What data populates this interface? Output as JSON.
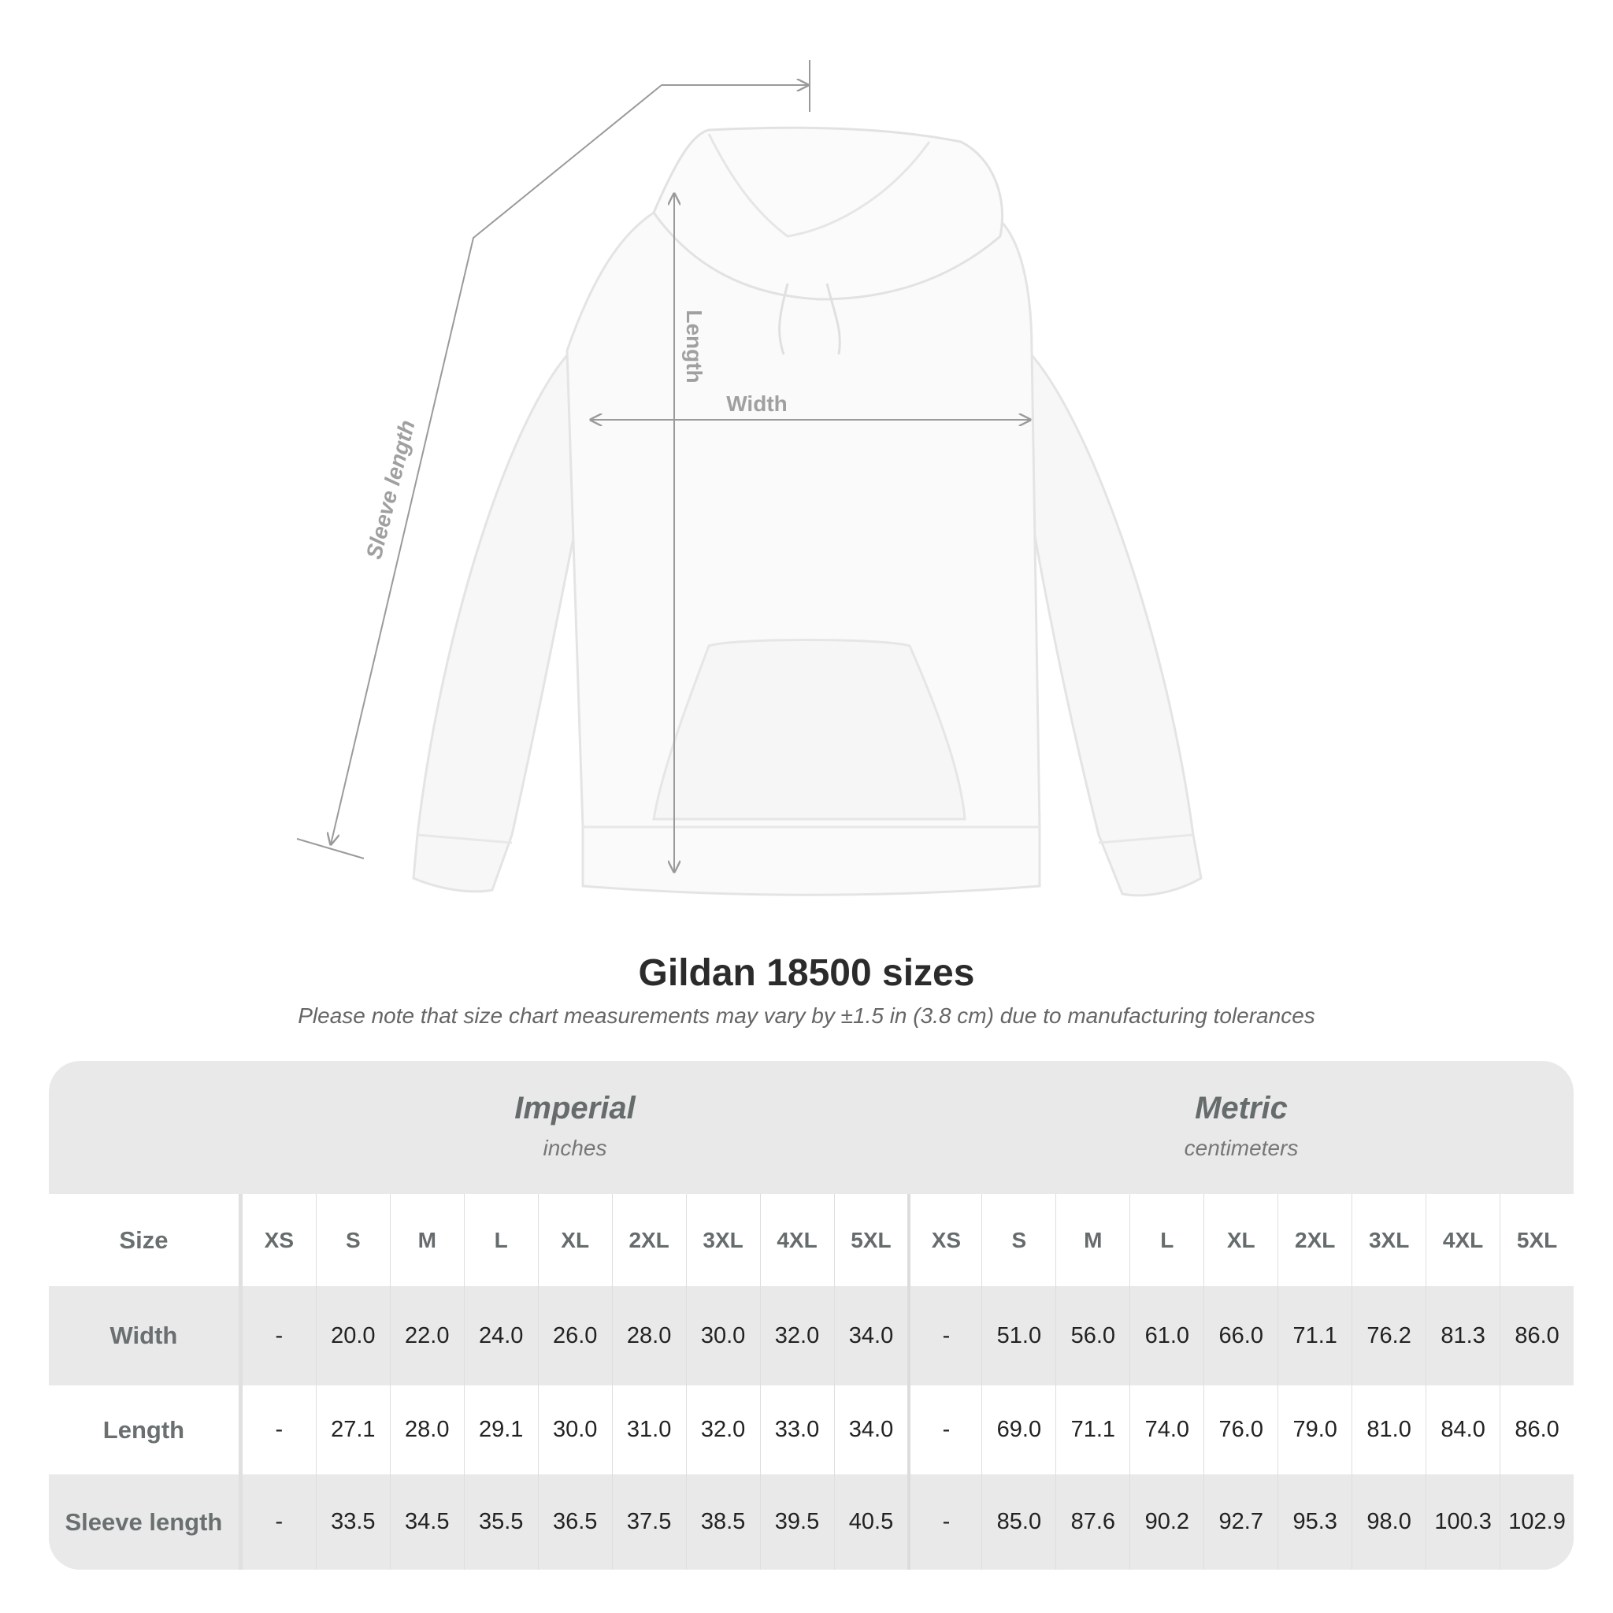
{
  "diagram": {
    "labels": {
      "sleeve_length": "Sleeve length",
      "length": "Length",
      "width": "Width"
    },
    "colors": {
      "measure_line": "#9a9a9a",
      "garment": "#fafafa"
    }
  },
  "title": "Gildan 18500 sizes",
  "note": "Please note that size chart measurements may vary by ±1.5 in (3.8 cm) due to manufacturing tolerances",
  "table": {
    "imperial": {
      "title": "Imperial",
      "unit": "inches"
    },
    "metric": {
      "title": "Metric",
      "unit": "centimeters"
    },
    "size_label": "Size",
    "sizes": [
      "XS",
      "S",
      "M",
      "L",
      "XL",
      "2XL",
      "3XL",
      "4XL",
      "5XL"
    ],
    "rows": [
      {
        "label": "Width",
        "imperial": [
          "-",
          "20.0",
          "22.0",
          "24.0",
          "26.0",
          "28.0",
          "30.0",
          "32.0",
          "34.0"
        ],
        "metric": [
          "-",
          "51.0",
          "56.0",
          "61.0",
          "66.0",
          "71.1",
          "76.2",
          "81.3",
          "86.0"
        ]
      },
      {
        "label": "Length",
        "imperial": [
          "-",
          "27.1",
          "28.0",
          "29.1",
          "30.0",
          "31.0",
          "32.0",
          "33.0",
          "34.0"
        ],
        "metric": [
          "-",
          "69.0",
          "71.1",
          "74.0",
          "76.0",
          "79.0",
          "81.0",
          "84.0",
          "86.0"
        ]
      },
      {
        "label": "Sleeve length",
        "imperial": [
          "-",
          "33.5",
          "34.5",
          "35.5",
          "36.5",
          "37.5",
          "38.5",
          "39.5",
          "40.5"
        ],
        "metric": [
          "-",
          "85.0",
          "87.6",
          "90.2",
          "92.7",
          "95.3",
          "98.0",
          "100.3",
          "102.9"
        ]
      }
    ]
  }
}
